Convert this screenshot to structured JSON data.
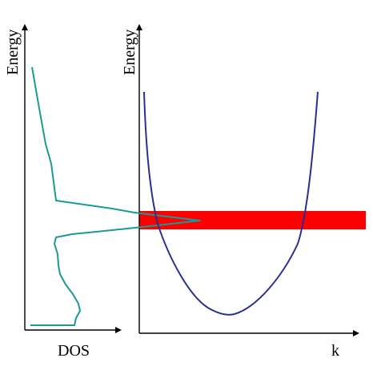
{
  "labels": {
    "left_y_axis": "Energy",
    "right_y_axis": "Energy",
    "left_x_axis": "DOS",
    "right_x_axis": "k"
  },
  "colors": {
    "axis": "#000000",
    "dos_curve": "#1a9a94",
    "band_curve": "#2b2f8f",
    "energy_band": "#ff0000",
    "background": "#ffffff"
  }
}
